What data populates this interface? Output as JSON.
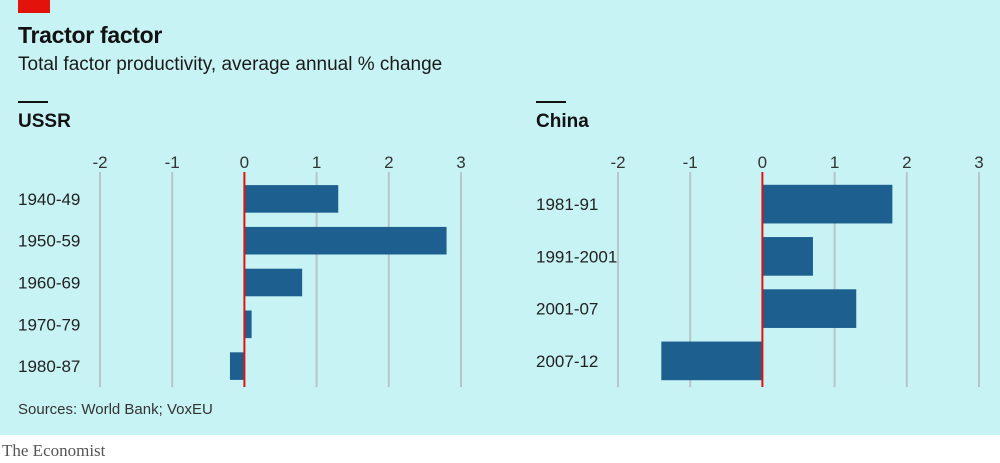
{
  "header": {
    "title": "Tractor factor",
    "subtitle": "Total factor productivity, average annual % change"
  },
  "colors": {
    "accent": "#e3120b",
    "bar": "#1d5f8e",
    "zero_line": "#e3120b",
    "grid": "#b9c4c9",
    "background": "#c8f3f5"
  },
  "chart_data": [
    {
      "type": "bar",
      "orientation": "horizontal",
      "title": "USSR",
      "categories": [
        "1940-49",
        "1950-59",
        "1960-69",
        "1970-79",
        "1980-87"
      ],
      "values": [
        1.3,
        2.8,
        0.8,
        0.1,
        -0.2
      ],
      "xlim": [
        -2,
        3
      ],
      "xticks": [
        "-2",
        "-1",
        "0",
        "1",
        "2",
        "3"
      ],
      "grid": true
    },
    {
      "type": "bar",
      "orientation": "horizontal",
      "title": "China",
      "categories": [
        "1981-91",
        "1991-2001",
        "2001-07",
        "2007-12"
      ],
      "values": [
        1.8,
        0.7,
        1.3,
        -1.4
      ],
      "xlim": [
        -2,
        3
      ],
      "xticks": [
        "-2",
        "-1",
        "0",
        "1",
        "2",
        "3"
      ],
      "grid": true
    }
  ],
  "footer": {
    "source": "Sources: World Bank; VoxEU",
    "brand": "The Economist"
  }
}
